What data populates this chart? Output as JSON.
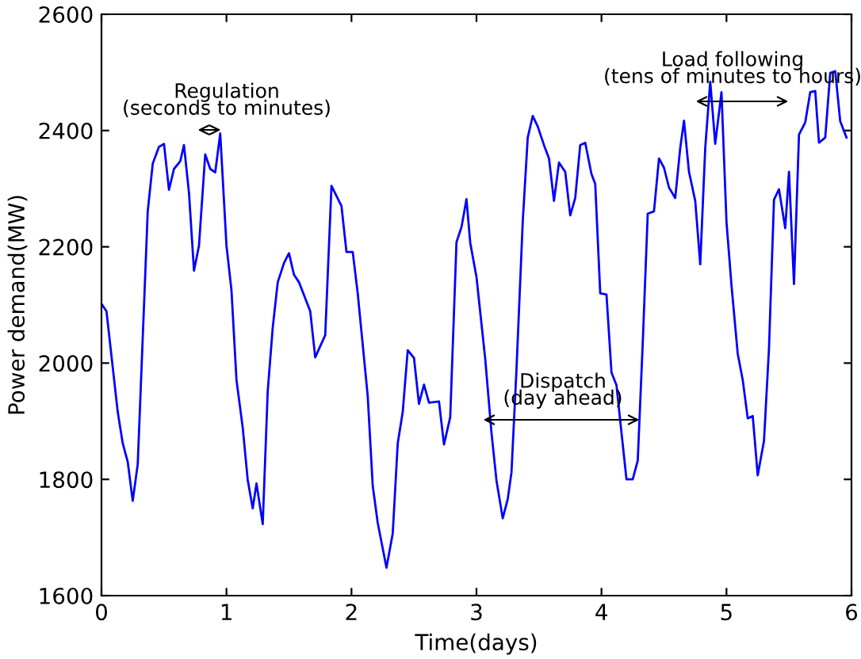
{
  "chart_data": {
    "type": "line",
    "xlabel": "Time(days)",
    "ylabel": "Power demand(MW)",
    "xlim": [
      0,
      6
    ],
    "ylim": [
      1600,
      2600
    ],
    "xticks": [
      0,
      1,
      2,
      3,
      4,
      5,
      6
    ],
    "yticks": [
      1600,
      1800,
      2000,
      2200,
      2400,
      2600
    ],
    "grid": false,
    "legend": false,
    "series": [
      {
        "color": "#0000ff",
        "x": [
          0,
          0.04,
          0.13,
          0.17,
          0.21,
          0.25,
          0.29,
          0.37,
          0.41,
          0.46,
          0.5,
          0.54,
          0.58,
          0.63,
          0.66,
          0.7,
          0.74,
          0.78,
          0.83,
          0.87,
          0.91,
          0.95,
          1.0,
          1.04,
          1.08,
          1.13,
          1.17,
          1.21,
          1.24,
          1.29,
          1.33,
          1.37,
          1.41,
          1.46,
          1.5,
          1.54,
          1.58,
          1.67,
          1.71,
          1.79,
          1.84,
          1.92,
          1.96,
          2.01,
          2.05,
          2.13,
          2.17,
          2.21,
          2.28,
          2.33,
          2.37,
          2.41,
          2.45,
          2.5,
          2.54,
          2.58,
          2.62,
          2.7,
          2.74,
          2.79,
          2.84,
          2.88,
          2.92,
          2.95,
          3.0,
          3.07,
          3.12,
          3.16,
          3.21,
          3.25,
          3.28,
          3.32,
          3.37,
          3.41,
          3.45,
          3.49,
          3.54,
          3.58,
          3.62,
          3.66,
          3.71,
          3.75,
          3.79,
          3.83,
          3.87,
          3.92,
          3.95,
          3.99,
          4.04,
          4.08,
          4.12,
          4.16,
          4.2,
          4.25,
          4.29,
          4.33,
          4.37,
          4.42,
          4.46,
          4.5,
          4.54,
          4.59,
          4.63,
          4.66,
          4.7,
          4.75,
          4.79,
          4.83,
          4.87,
          4.91,
          4.96,
          5.0,
          5.04,
          5.09,
          5.13,
          5.17,
          5.21,
          5.25,
          5.3,
          5.34,
          5.38,
          5.42,
          5.47,
          5.5,
          5.54,
          5.58,
          5.63,
          5.67,
          5.71,
          5.74,
          5.79,
          5.83,
          5.87,
          5.91,
          5.96
        ],
        "values": [
          2102,
          2089,
          1916,
          1862,
          1830,
          1763,
          1826,
          2261,
          2343,
          2372,
          2377,
          2298,
          2334,
          2347,
          2375,
          2293,
          2159,
          2202,
          2359,
          2334,
          2328,
          2395,
          2202,
          2125,
          1971,
          1889,
          1799,
          1750,
          1793,
          1723,
          1952,
          2061,
          2139,
          2172,
          2189,
          2152,
          2139,
          2089,
          2010,
          2048,
          2305,
          2270,
          2191,
          2191,
          2120,
          1943,
          1789,
          1725,
          1648,
          1707,
          1862,
          1916,
          2022,
          2009,
          1930,
          1963,
          1932,
          1934,
          1860,
          1907,
          2208,
          2234,
          2282,
          2207,
          2148,
          2007,
          1880,
          1798,
          1733,
          1766,
          1812,
          1989,
          2243,
          2388,
          2425,
          2407,
          2375,
          2352,
          2279,
          2345,
          2329,
          2254,
          2284,
          2375,
          2379,
          2325,
          2308,
          2120,
          2118,
          1984,
          1962,
          1880,
          1800,
          1800,
          1832,
          2034,
          2257,
          2261,
          2352,
          2336,
          2302,
          2284,
          2370,
          2417,
          2329,
          2279,
          2170,
          2370,
          2484,
          2377,
          2466,
          2243,
          2134,
          2016,
          1971,
          1905,
          1909,
          1807,
          1866,
          2025,
          2281,
          2299,
          2232,
          2329,
          2136,
          2393,
          2414,
          2466,
          2468,
          2379,
          2388,
          2499,
          2502,
          2416,
          2388
        ]
      }
    ],
    "annotations": [
      "Regulation\n(seconds to minutes)",
      "Dispatch\n(day ahead)",
      "Load following\n(tens of minutes to hours)"
    ]
  }
}
